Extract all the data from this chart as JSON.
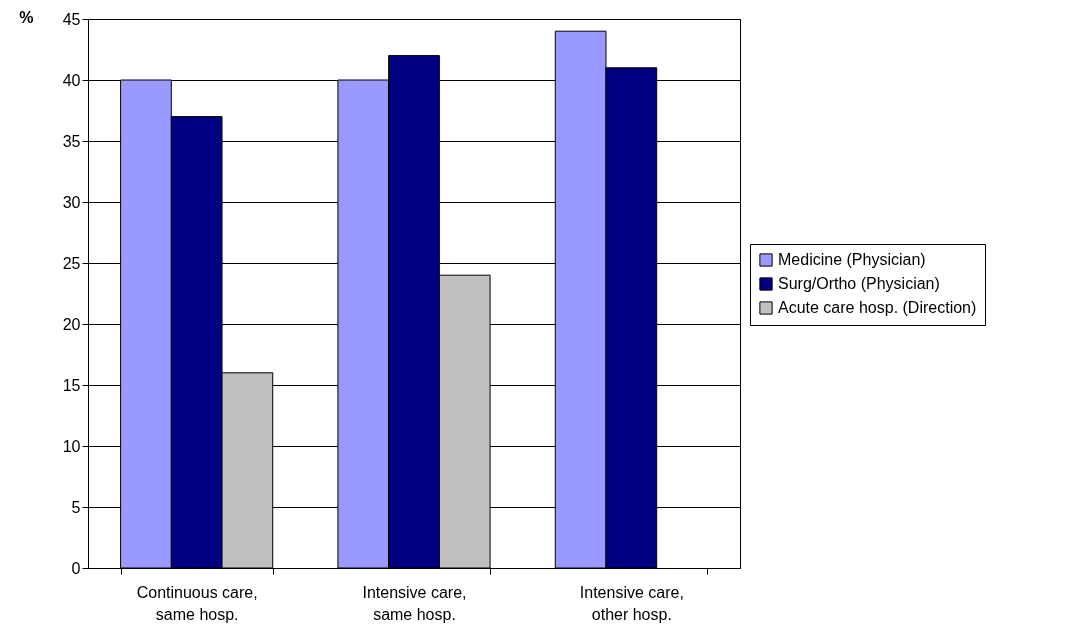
{
  "chart_data": {
    "type": "bar",
    "ylabel": "%",
    "categories": [
      "Continuous care,\nsame hosp.",
      "Intensive care,\nsame hosp.",
      "Intensive care,\nother hosp."
    ],
    "series": [
      {
        "name": "Medicine (Physician)",
        "color": "#9999ff",
        "values": [
          40,
          40,
          44
        ]
      },
      {
        "name": "Surg/Ortho (Physician)",
        "color": "#000080",
        "values": [
          37,
          42,
          41
        ]
      },
      {
        "name": "Acute care hosp. (Direction)",
        "color": "#c0c0c0",
        "values": [
          16,
          24,
          null
        ]
      }
    ],
    "ylim": [
      0,
      45
    ],
    "yticks": [
      0,
      5,
      10,
      15,
      20,
      25,
      30,
      35,
      40,
      45
    ],
    "grid": "y",
    "legend": "right"
  }
}
